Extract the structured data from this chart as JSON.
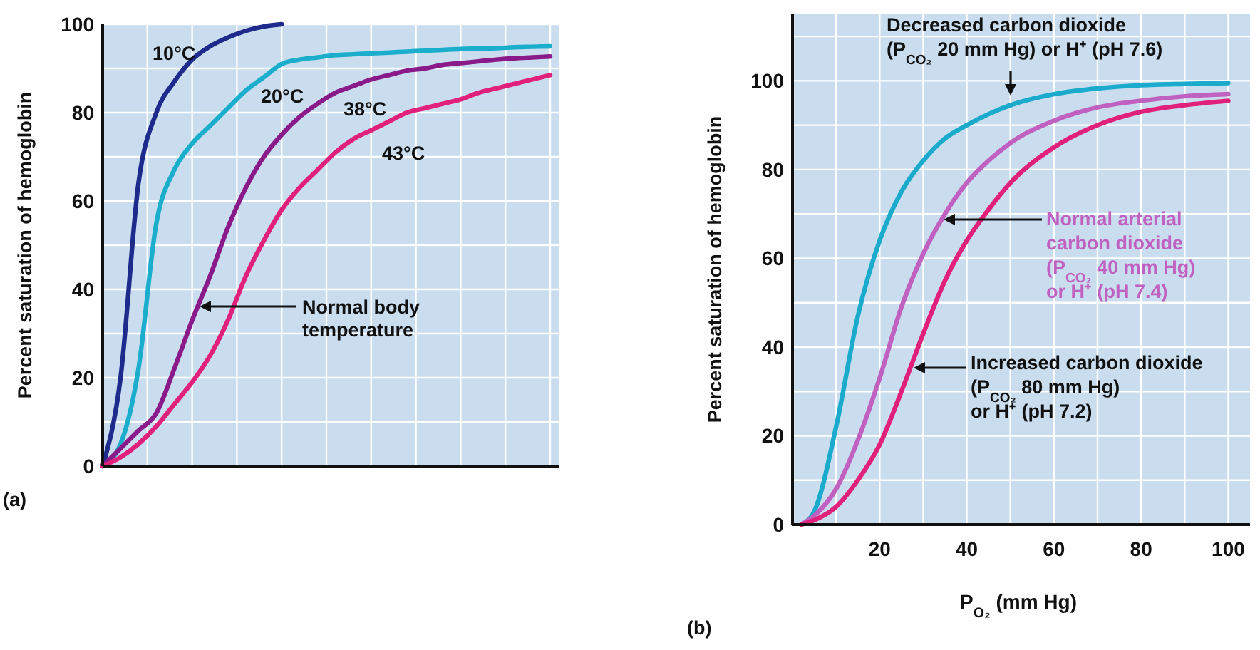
{
  "chart_data": [
    {
      "type": "line",
      "ylabel": "Percent saturation of hemoglobin",
      "categories": [
        null,
        null,
        null,
        null,
        null,
        null,
        null,
        null,
        null,
        null,
        null,
        null,
        null,
        null,
        null,
        null,
        null,
        null,
        null,
        null,
        null,
        null,
        null,
        null,
        null,
        null
      ],
      "ylim": [
        0,
        100
      ],
      "yticks": [
        0,
        {
          "value": 10,
          "label": null
        },
        20,
        {
          "value": 30,
          "label": null
        },
        40,
        {
          "value": 50,
          "label": null
        },
        60,
        {
          "value": 70,
          "label": null
        },
        80,
        {
          "value": 90,
          "label": null
        },
        100
      ],
      "grid": true,
      "legend": false,
      "series": [
        {
          "name": "10°C",
          "color": "#1e2a8c",
          "values": [
            0,
            20,
            64,
            80,
            87,
            92,
            95,
            97,
            98.5,
            99.5,
            100,
            null,
            null,
            null,
            null,
            null,
            null,
            null,
            null,
            null,
            null,
            null,
            null,
            null,
            null,
            null
          ]
        },
        {
          "name": "20°C",
          "color": "#1aaecc",
          "values": [
            0,
            5,
            22,
            55,
            67,
            73,
            77,
            81,
            85,
            88,
            91,
            92,
            92.5,
            93,
            93.2,
            93.4,
            93.6,
            93.8,
            94,
            94.2,
            94.4,
            94.5,
            94.6,
            94.8,
            94.9,
            95
          ]
        },
        {
          "name": "38°C",
          "color": "#8a1a8a",
          "values": [
            0,
            4,
            8,
            12,
            22,
            33,
            43,
            54,
            63,
            70,
            75,
            79,
            82,
            84.5,
            86,
            87.5,
            88.5,
            89.5,
            90,
            90.8,
            91.2,
            91.6,
            92,
            92.3,
            92.5,
            92.7
          ]
        },
        {
          "name": "43°C",
          "color": "#e0207a",
          "values": [
            0,
            2,
            5,
            9,
            14,
            19,
            25,
            33,
            43,
            51,
            58,
            63,
            67,
            71,
            74,
            76,
            78,
            80,
            81,
            82,
            83,
            84.5,
            85.5,
            86.5,
            87.5,
            88.5
          ]
        }
      ],
      "annotations": [
        "Normal body\ntemperature",
        "(a)"
      ]
    },
    {
      "type": "line",
      "ylabel": "Percent saturation of hemoglobin",
      "xlabel": "P$_{O₂}$ (mm Hg)",
      "xlim": [
        0,
        105
      ],
      "xticks": [
        {
          "value": 10,
          "label": null
        },
        20,
        {
          "value": 30,
          "label": null
        },
        40,
        {
          "value": 50,
          "label": null
        },
        60,
        {
          "value": 70,
          "label": null
        },
        80,
        {
          "value": 90,
          "label": null
        },
        100
      ],
      "ylim": [
        0,
        115
      ],
      "yticks": [
        0,
        {
          "value": 10,
          "label": null
        },
        20,
        {
          "value": 30,
          "label": null
        },
        40,
        {
          "value": 50,
          "label": null
        },
        60,
        {
          "value": 70,
          "label": null
        },
        80,
        {
          "value": 90,
          "label": null
        },
        100,
        {
          "value": 110,
          "label": null
        }
      ],
      "grid": true,
      "legend": false,
      "series": [
        {
          "name": "Decreased carbon dioxide\n(P$_{CO₂}$ 20 mm Hg) or H⁺ (pH 7.6)",
          "color": "#1aaacc",
          "x": [
            2,
            5,
            10,
            15,
            20,
            25,
            30,
            35,
            40,
            45,
            50,
            60,
            70,
            80,
            90,
            100
          ],
          "values": [
            0,
            3,
            22,
            47,
            64,
            75,
            82,
            87,
            90,
            92.5,
            94.5,
            97,
            98.3,
            99,
            99.3,
            99.5
          ]
        },
        {
          "name": "Normal arterial\ncarbon dioxide\n(P$_{CO₂}$ 40 mm Hg)\nor H⁺ (pH 7.4)",
          "color": "#c060c0",
          "x": [
            2,
            5,
            10,
            15,
            20,
            25,
            30,
            35,
            40,
            45,
            50,
            60,
            70,
            80,
            90,
            100
          ],
          "values": [
            0,
            2,
            8,
            19,
            33,
            49,
            61,
            70,
            77,
            82,
            86,
            91,
            94,
            95.5,
            96.5,
            97
          ]
        },
        {
          "name": "Increased carbon dioxide\n(P$_{CO₂}$ 80 mm Hg)\nor H⁺ (pH 7.2)",
          "color": "#e0207a",
          "x": [
            2,
            5,
            10,
            15,
            20,
            25,
            30,
            35,
            40,
            45,
            50,
            60,
            70,
            80,
            90,
            100
          ],
          "values": [
            0,
            1,
            4,
            10,
            18,
            30,
            43,
            55,
            64,
            71,
            77,
            85,
            90,
            93,
            94.5,
            95.5
          ]
        }
      ],
      "annotations": [
        "(b)"
      ]
    }
  ]
}
